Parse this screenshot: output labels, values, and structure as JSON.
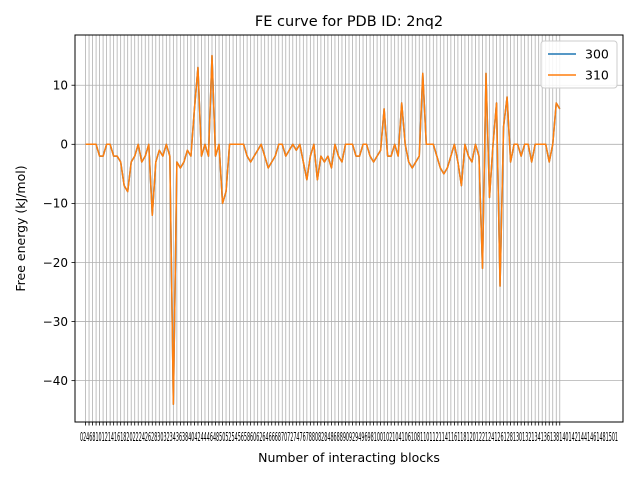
{
  "chart_data": {
    "type": "line",
    "title": "FE curve for PDB ID: 2nq2",
    "xlabel": "Number of interacting blocks",
    "ylabel": "Free energy (kJ/mol)",
    "xlim": [
      -3,
      153
    ],
    "ylim": [
      -47,
      18.5
    ],
    "yticks": [
      10,
      0,
      -10,
      -20,
      -30,
      -40
    ],
    "ytick_labels": [
      "10",
      "0",
      "−10",
      "−20",
      "−30",
      "−40"
    ],
    "xtick_label_text": "024681012141618202224262830323436384042444648505254565860626466687072747678808284868890929496981001021041061081101121141161181201221241261281301321341361381401421441461481501",
    "grid": {
      "x": true,
      "y": true
    },
    "legend_position": "top-right",
    "series": [
      {
        "name": "300",
        "color": "#1f77b4",
        "values": [
          0,
          0,
          0,
          0,
          -2,
          -2,
          0,
          0,
          -2,
          -2,
          -3,
          -7,
          -8,
          -3,
          -2,
          0,
          -3,
          -2,
          0,
          -12,
          -3,
          -1,
          -2,
          0,
          -2,
          -44,
          -3,
          -4,
          -3,
          -1,
          -2,
          6,
          13,
          -2,
          0,
          -2,
          15,
          -2,
          0,
          -10,
          -8,
          0,
          0,
          0,
          0,
          0,
          -2,
          -3,
          -2,
          -1,
          0,
          -2,
          -4,
          -3,
          -2,
          0,
          0,
          -2,
          -1,
          0,
          -1,
          0,
          -3,
          -6,
          -2,
          0,
          -6,
          -2,
          -3,
          -2,
          -4,
          0,
          -2,
          -3,
          0,
          0,
          0,
          -2,
          -2,
          0,
          0,
          -2,
          -3,
          -2,
          -1,
          6,
          -2,
          -2,
          0,
          -2,
          7,
          0,
          -3,
          -4,
          -3,
          -2,
          12,
          0,
          0,
          0,
          -2,
          -4,
          -5,
          -4,
          -2,
          0,
          -3,
          -7,
          0,
          -2,
          -3,
          0,
          -2,
          -21,
          12,
          -9,
          0,
          7,
          -24,
          3,
          8,
          -3,
          0,
          0,
          -2,
          0,
          0,
          -3,
          0,
          0,
          0,
          0,
          -3,
          0,
          7,
          6
        ]
      },
      {
        "name": "310",
        "color": "#ff7f0e",
        "values": [
          0,
          0,
          0,
          0,
          -2,
          -2,
          0,
          0,
          -2,
          -2,
          -3,
          -7,
          -8,
          -3,
          -2,
          0,
          -3,
          -2,
          0,
          -12,
          -3,
          -1,
          -2,
          0,
          -2,
          -44,
          -3,
          -4,
          -3,
          -1,
          -2,
          6,
          13,
          -2,
          0,
          -2,
          15,
          -2,
          0,
          -10,
          -8,
          0,
          0,
          0,
          0,
          0,
          -2,
          -3,
          -2,
          -1,
          0,
          -2,
          -4,
          -3,
          -2,
          0,
          0,
          -2,
          -1,
          0,
          -1,
          0,
          -3,
          -6,
          -2,
          0,
          -6,
          -2,
          -3,
          -2,
          -4,
          0,
          -2,
          -3,
          0,
          0,
          0,
          -2,
          -2,
          0,
          0,
          -2,
          -3,
          -2,
          -1,
          6,
          -2,
          -2,
          0,
          -2,
          7,
          0,
          -3,
          -4,
          -3,
          -2,
          12,
          0,
          0,
          0,
          -2,
          -4,
          -5,
          -4,
          -2,
          0,
          -3,
          -7,
          0,
          -2,
          -3,
          0,
          -2,
          -21,
          12,
          -9,
          0,
          7,
          -24,
          3,
          8,
          -3,
          0,
          0,
          -2,
          0,
          0,
          -3,
          0,
          0,
          0,
          0,
          -3,
          0,
          7,
          6
        ]
      }
    ]
  }
}
